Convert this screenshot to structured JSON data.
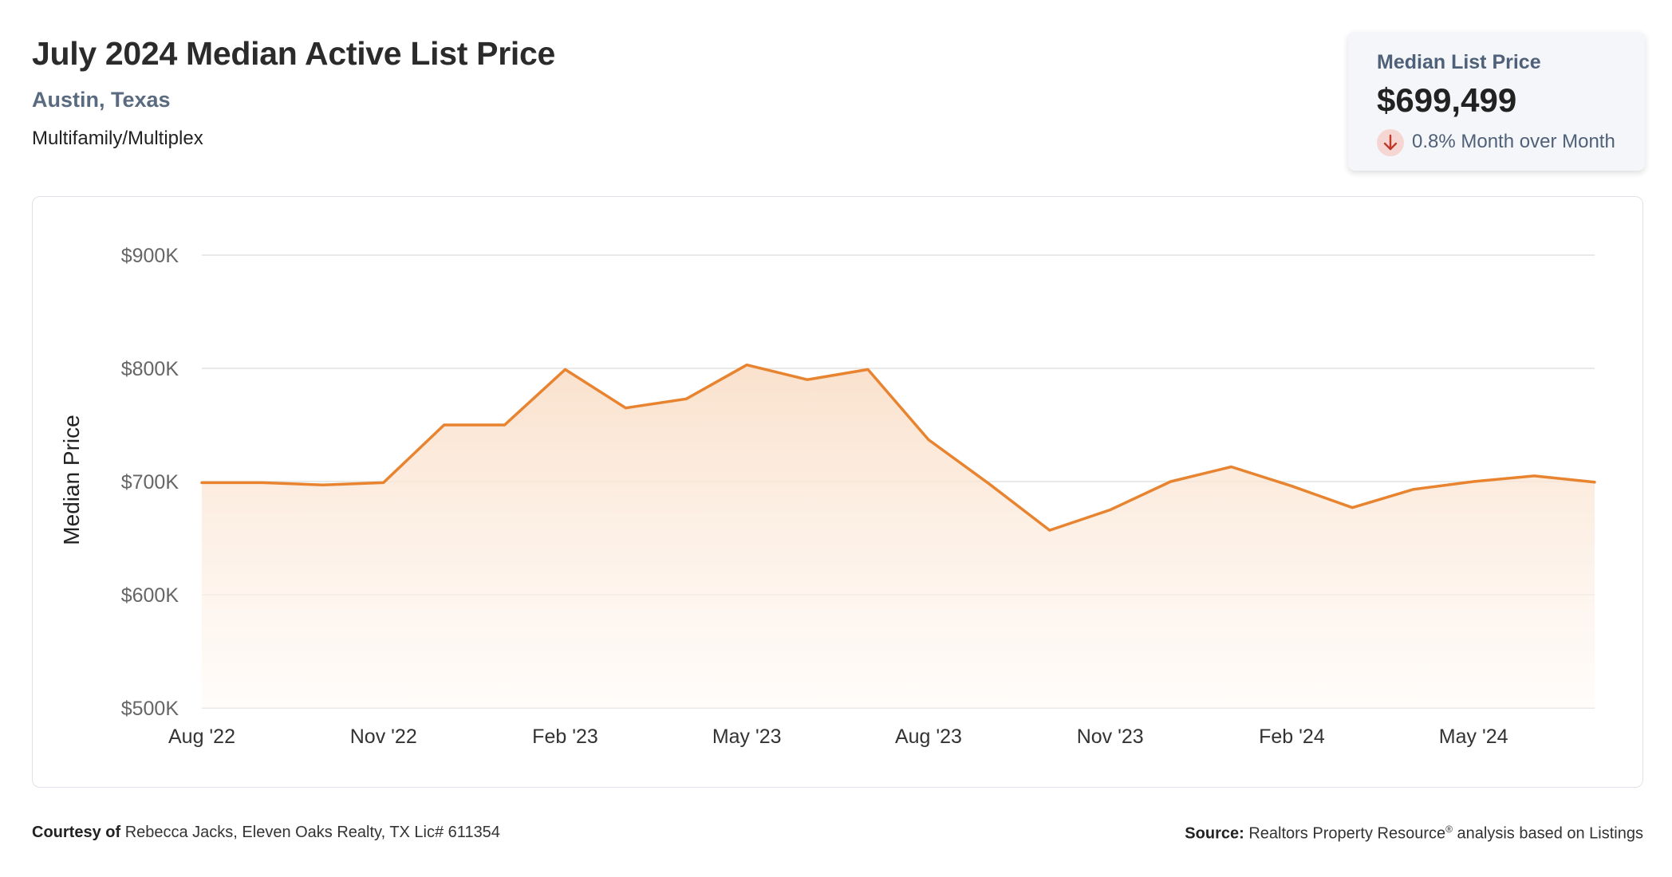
{
  "header": {
    "title": "July 2024 Median Active List Price",
    "location": "Austin, Texas",
    "property_type": "Multifamily/Multiplex"
  },
  "stat_card": {
    "label": "Median List Price",
    "value": "$699,499",
    "change_text": "0.8% Month over Month",
    "change_direction": "down",
    "change_icon": "arrow-down-icon"
  },
  "footer": {
    "courtesy_label": "Courtesy of",
    "courtesy_text": "Rebecca Jacks, Eleven Oaks Realty, TX Lic# 611354",
    "source_label": "Source:",
    "source_text": "Realtors Property Resource",
    "source_mark": "®",
    "source_suffix": " analysis based on Listings"
  },
  "colors": {
    "line": "#e8842f",
    "area_top": "#f9dcc4",
    "area_bottom": "#fffaf6",
    "grid": "#e2e2e2",
    "tick_text": "#666666",
    "down_arrow": "#c0392b"
  },
  "chart_data": {
    "type": "area",
    "x": [
      "Aug '22",
      "Sep '22",
      "Oct '22",
      "Nov '22",
      "Dec '22",
      "Jan '23",
      "Feb '23",
      "Mar '23",
      "Apr '23",
      "May '23",
      "Jun '23",
      "Jul '23",
      "Aug '23",
      "Sep '23",
      "Oct '23",
      "Nov '23",
      "Dec '23",
      "Jan '24",
      "Feb '24",
      "Mar '24",
      "Apr '24",
      "May '24",
      "Jun '24",
      "Jul '24"
    ],
    "series": [
      {
        "values": [
          699000,
          699000,
          697000,
          699000,
          750000,
          750000,
          799000,
          765000,
          773000,
          803000,
          790000,
          799000,
          737000,
          698000,
          657000,
          675000,
          700000,
          713000,
          696000,
          677000,
          693000,
          700000,
          705000,
          699499
        ]
      }
    ],
    "x_tick_labels": [
      "Aug '22",
      "Nov '22",
      "Feb '23",
      "May '23",
      "Aug '23",
      "Nov '23",
      "Feb '24",
      "May '24"
    ],
    "x_tick_index": [
      0,
      3,
      6,
      9,
      12,
      15,
      18,
      21
    ],
    "y_ticks": [
      500000,
      600000,
      700000,
      800000,
      900000
    ],
    "y_tick_labels": [
      "$500K",
      "$600K",
      "$700K",
      "$800K",
      "$900K"
    ],
    "ylim": [
      500000,
      900000
    ],
    "xlabel": "",
    "ylabel": "Median Price",
    "grid": true,
    "legend": "none"
  }
}
